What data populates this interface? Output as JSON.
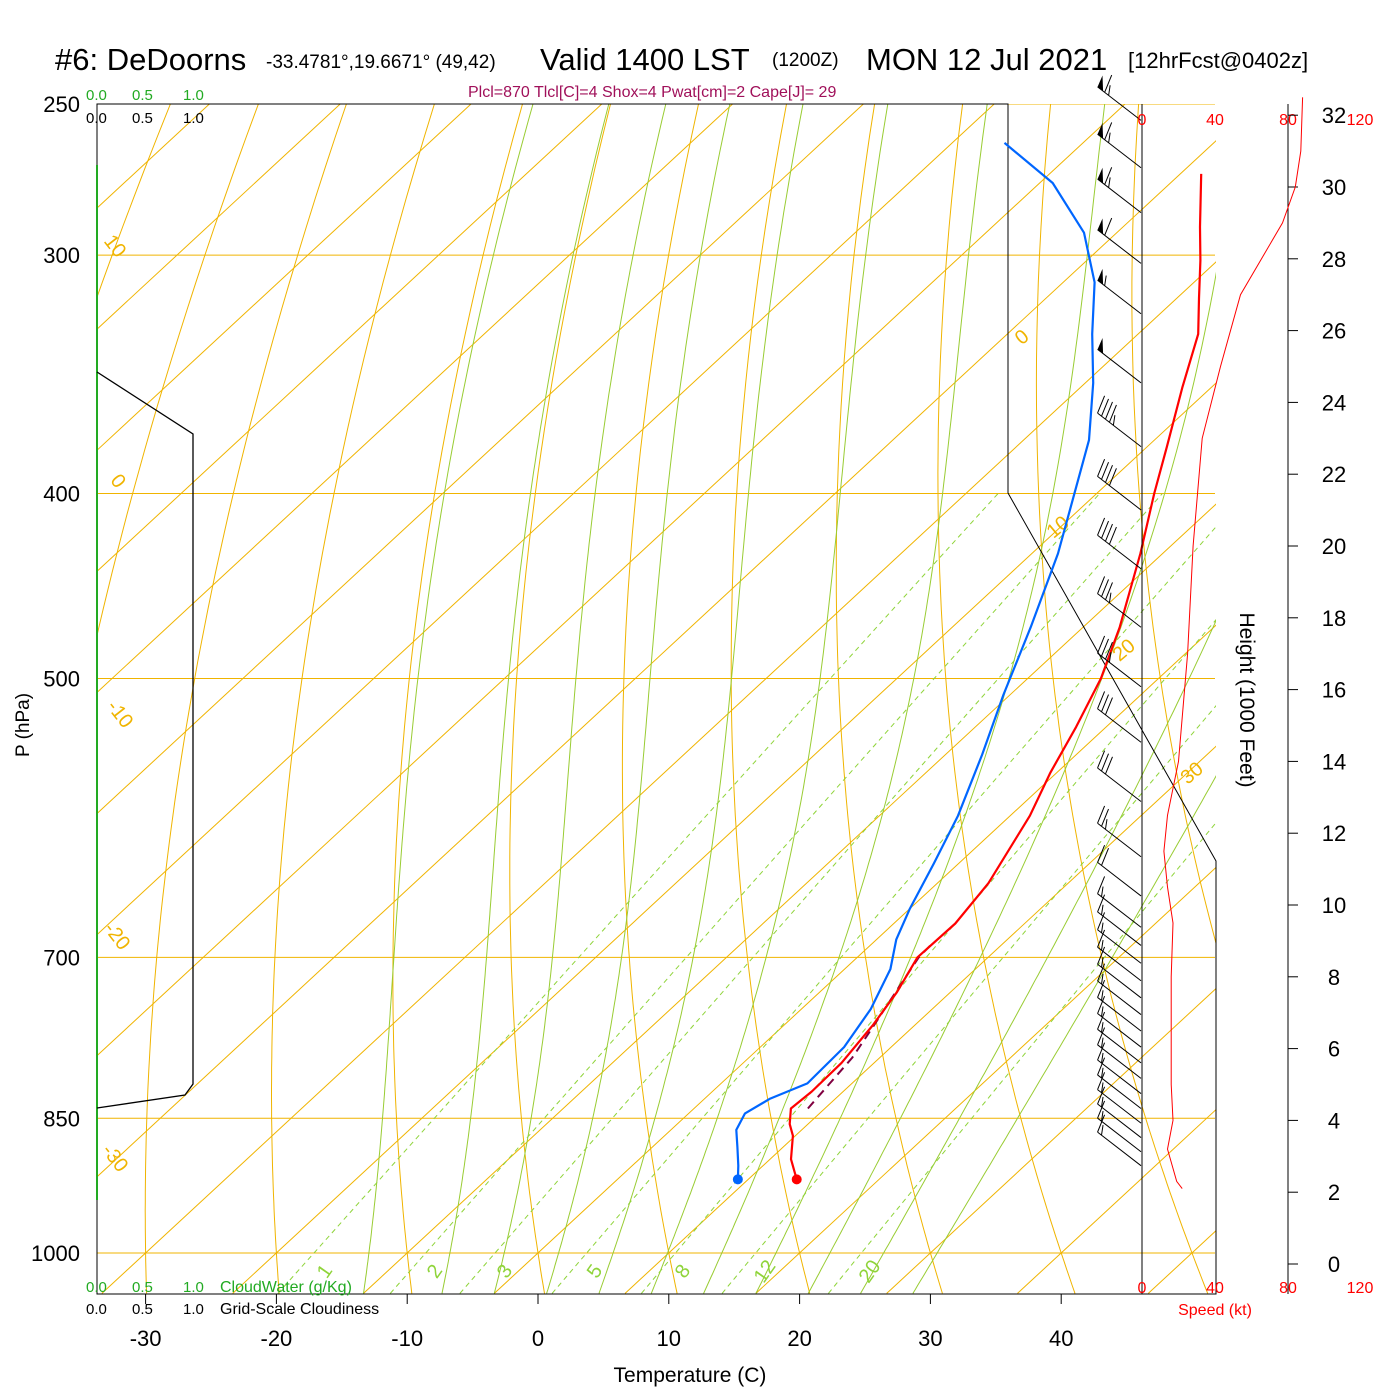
{
  "header": {
    "station": "#6: DeDoorns",
    "coords": "-33.4781°,19.6671° (49,42)",
    "valid": "Valid 1400 LST",
    "zulu": "(1200Z)",
    "date": "MON 12 Jul 2021",
    "forecast": "[12hrFcst@0402z]",
    "indices": "Plcl=870 Tlcl[C]=4 Shox=4 Pwat[cm]=2 Cape[J]= 29"
  },
  "colors": {
    "temperature": "#ff0000",
    "dewpoint": "#0066ff",
    "isotherm": "#f0b400",
    "dry_adiabat": "#f0b400",
    "moist_adiabat": "#99cc33",
    "mixing_ratio": "#8fd43a",
    "cloud": "#22aa22",
    "parcel": "#800040",
    "indices": "#a0105a",
    "speed": "#ff0000"
  },
  "chart_data": {
    "type": "skew-t",
    "xlabel": "Temperature (C)",
    "ylabel": "P (hPa)",
    "x_ticks": [
      "-30",
      "-20",
      "-10",
      "0",
      "10",
      "20",
      "30",
      "40"
    ],
    "pressure_ticks": [
      "250",
      "300",
      "400",
      "500",
      "700",
      "850",
      "1000"
    ],
    "pressure_levels": [
      250,
      300,
      400,
      500,
      700,
      850,
      1000
    ],
    "dry_adiabat_labels": [
      "10",
      "0",
      "-10",
      "-20",
      "-30"
    ],
    "isotherm_labels": [
      "0",
      "10",
      "20",
      "30"
    ],
    "mixing_ratio_labels": [
      "1",
      "2",
      "3",
      "5",
      "8",
      "12",
      "20"
    ],
    "temperature_profile": [
      {
        "p": 915,
        "t": 13.7
      },
      {
        "p": 893,
        "t": 11.6
      },
      {
        "p": 868,
        "t": 9.8
      },
      {
        "p": 856,
        "t": 8.6
      },
      {
        "p": 840,
        "t": 7.4
      },
      {
        "p": 823,
        "t": 7.6
      },
      {
        "p": 795,
        "t": 7.5
      },
      {
        "p": 760,
        "t": 6.8
      },
      {
        "p": 730,
        "t": 5.9
      },
      {
        "p": 700,
        "t": 4.6
      },
      {
        "p": 672,
        "t": 4.7
      },
      {
        "p": 640,
        "t": 3.9
      },
      {
        "p": 590,
        "t": 1.5
      },
      {
        "p": 560,
        "t": -0.5
      },
      {
        "p": 530,
        "t": -2.3
      },
      {
        "p": 500,
        "t": -4.4
      },
      {
        "p": 470,
        "t": -7.2
      },
      {
        "p": 430,
        "t": -11.7
      },
      {
        "p": 400,
        "t": -15.6
      },
      {
        "p": 378,
        "t": -18.5
      },
      {
        "p": 352,
        "t": -22.2
      },
      {
        "p": 330,
        "t": -25.4
      },
      {
        "p": 316,
        "t": -28.3
      },
      {
        "p": 302,
        "t": -31.3
      },
      {
        "p": 290,
        "t": -34.1
      },
      {
        "p": 272,
        "t": -38.4
      }
    ],
    "dewpoint_profile": [
      {
        "p": 915,
        "t": 9.2
      },
      {
        "p": 900,
        "t": 8.1
      },
      {
        "p": 880,
        "t": 6.5
      },
      {
        "p": 862,
        "t": 5.0
      },
      {
        "p": 845,
        "t": 4.3
      },
      {
        "p": 830,
        "t": 5.0
      },
      {
        "p": 815,
        "t": 6.6
      },
      {
        "p": 780,
        "t": 6.4
      },
      {
        "p": 745,
        "t": 5.3
      },
      {
        "p": 710,
        "t": 3.5
      },
      {
        "p": 685,
        "t": 1.5
      },
      {
        "p": 660,
        "t": 0.0
      },
      {
        "p": 625,
        "t": -1.9
      },
      {
        "p": 590,
        "t": -4.0
      },
      {
        "p": 548,
        "t": -7.2
      },
      {
        "p": 510,
        "t": -10.5
      },
      {
        "p": 470,
        "t": -14.0
      },
      {
        "p": 430,
        "t": -18.0
      },
      {
        "p": 400,
        "t": -21.7
      },
      {
        "p": 375,
        "t": -25.0
      },
      {
        "p": 350,
        "t": -29.4
      },
      {
        "p": 330,
        "t": -33.5
      },
      {
        "p": 310,
        "t": -37.6
      },
      {
        "p": 292,
        "t": -42.5
      },
      {
        "p": 275,
        "t": -49.0
      },
      {
        "p": 262,
        "t": -56.0
      }
    ],
    "parcel_profile": [
      {
        "p": 840,
        "t": 8.7
      },
      {
        "p": 790,
        "t": 7.9
      },
      {
        "p": 760,
        "t": 6.9
      },
      {
        "p": 730,
        "t": 5.8
      },
      {
        "p": 700,
        "t": 4.7
      },
      {
        "p": 690,
        "t": 4.6
      }
    ],
    "cloudwater": {
      "label": "CloudWater (g/Kg)",
      "scale": [
        "0.0",
        "0.5",
        "1.0"
      ],
      "values_gkg": [
        0,
        0,
        0,
        0,
        0,
        0,
        0
      ]
    },
    "cloudiness": {
      "label": "Grid-Scale Cloudiness",
      "scale": [
        "0.0",
        "0.5",
        "1.0"
      ],
      "values": [
        0,
        0,
        0,
        0,
        0,
        0,
        0
      ]
    },
    "wind_speed": {
      "label": "Speed (kt)",
      "ticks": [
        "0",
        "40",
        "80",
        "120"
      ],
      "range": [
        0,
        120
      ],
      "profile": [
        {
          "h": 2.1,
          "spd": 22
        },
        {
          "h": 2.3,
          "spd": 19
        },
        {
          "h": 3.2,
          "spd": 14
        },
        {
          "h": 4.0,
          "spd": 17
        },
        {
          "h": 5.0,
          "spd": 16
        },
        {
          "h": 6.5,
          "spd": 16
        },
        {
          "h": 8.0,
          "spd": 16
        },
        {
          "h": 9.5,
          "spd": 17
        },
        {
          "h": 10.5,
          "spd": 14
        },
        {
          "h": 11.5,
          "spd": 12
        },
        {
          "h": 12.5,
          "spd": 14
        },
        {
          "h": 14.0,
          "spd": 20
        },
        {
          "h": 17.0,
          "spd": 25
        },
        {
          "h": 20.0,
          "spd": 28
        },
        {
          "h": 23.0,
          "spd": 33
        },
        {
          "h": 25.0,
          "spd": 43
        },
        {
          "h": 27.0,
          "spd": 54
        },
        {
          "h": 29.0,
          "spd": 77
        },
        {
          "h": 30.0,
          "spd": 84
        },
        {
          "h": 31.0,
          "spd": 87
        },
        {
          "h": 32.5,
          "spd": 88
        }
      ]
    },
    "height_axis": {
      "label": "Height (1000 Feet)",
      "ticks": [
        "0",
        "2",
        "4",
        "6",
        "8",
        "10",
        "12",
        "14",
        "16",
        "18",
        "20",
        "22",
        "24",
        "26",
        "28",
        "30",
        "32"
      ]
    },
    "wind_barbs": [
      {
        "p": 255,
        "spd": 65
      },
      {
        "p": 270,
        "spd": 65
      },
      {
        "p": 285,
        "spd": 65
      },
      {
        "p": 303,
        "spd": 60
      },
      {
        "p": 322,
        "spd": 55
      },
      {
        "p": 350,
        "spd": 50
      },
      {
        "p": 378,
        "spd": 45
      },
      {
        "p": 408,
        "spd": 40
      },
      {
        "p": 438,
        "spd": 40
      },
      {
        "p": 470,
        "spd": 35
      },
      {
        "p": 505,
        "spd": 35
      },
      {
        "p": 540,
        "spd": 30
      },
      {
        "p": 580,
        "spd": 30
      },
      {
        "p": 620,
        "spd": 25
      },
      {
        "p": 650,
        "spd": 20
      },
      {
        "p": 675,
        "spd": 15
      },
      {
        "p": 690,
        "spd": 15
      },
      {
        "p": 705,
        "spd": 15
      },
      {
        "p": 720,
        "spd": 15
      },
      {
        "p": 735,
        "spd": 15
      },
      {
        "p": 750,
        "spd": 15
      },
      {
        "p": 765,
        "spd": 15
      },
      {
        "p": 780,
        "spd": 15
      },
      {
        "p": 795,
        "spd": 15
      },
      {
        "p": 810,
        "spd": 15
      },
      {
        "p": 825,
        "spd": 15
      },
      {
        "p": 840,
        "spd": 15
      },
      {
        "p": 855,
        "spd": 15
      },
      {
        "p": 870,
        "spd": 15
      },
      {
        "p": 885,
        "spd": 15
      },
      {
        "p": 900,
        "spd": 15
      }
    ]
  }
}
